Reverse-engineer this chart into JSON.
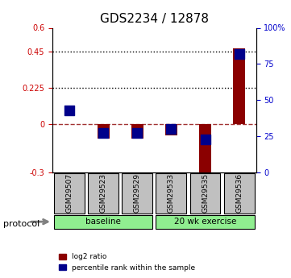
{
  "title": "GDS2234 / 12878",
  "samples": [
    "GSM29507",
    "GSM29523",
    "GSM29529",
    "GSM29533",
    "GSM29535",
    "GSM29536"
  ],
  "log2_ratios": [
    0.0,
    -0.09,
    -0.09,
    -0.07,
    -0.32,
    0.47
  ],
  "percentile_ranks": [
    43,
    27,
    27,
    30,
    23,
    82
  ],
  "ylim_left": [
    -0.3,
    0.6
  ],
  "ylim_right": [
    0,
    100
  ],
  "yticks_left": [
    -0.3,
    0.0,
    0.225,
    0.45,
    0.6
  ],
  "ytick_labels_left": [
    "-0.3",
    "0",
    "0.225",
    "0.45",
    "0.6"
  ],
  "yticks_right": [
    0,
    25,
    50,
    75,
    100
  ],
  "ytick_labels_right": [
    "0",
    "25",
    "50",
    "75",
    "100%"
  ],
  "hlines_dotted": [
    0.225,
    0.45
  ],
  "hline_dashed": 0.0,
  "bar_color": "#8B0000",
  "dot_color": "#00008B",
  "bar_width": 0.35,
  "dot_size": 80,
  "baseline_samples": [
    "GSM29507",
    "GSM29523",
    "GSM29529"
  ],
  "exercise_samples": [
    "GSM29533",
    "GSM29535",
    "GSM29536"
  ],
  "baseline_color": "#90EE90",
  "exercise_color": "#90EE90",
  "baseline_label": "baseline",
  "exercise_label": "20 wk exercise",
  "protocol_label": "protocol",
  "legend_red_label": "log2 ratio",
  "legend_blue_label": "percentile rank within the sample",
  "tick_label_color_left": "#CC0000",
  "tick_label_color_right": "#0000CC",
  "background_color": "#ffffff",
  "plot_bg_color": "#ffffff",
  "sample_box_color": "#C0C0C0",
  "grid_color": "#000000"
}
